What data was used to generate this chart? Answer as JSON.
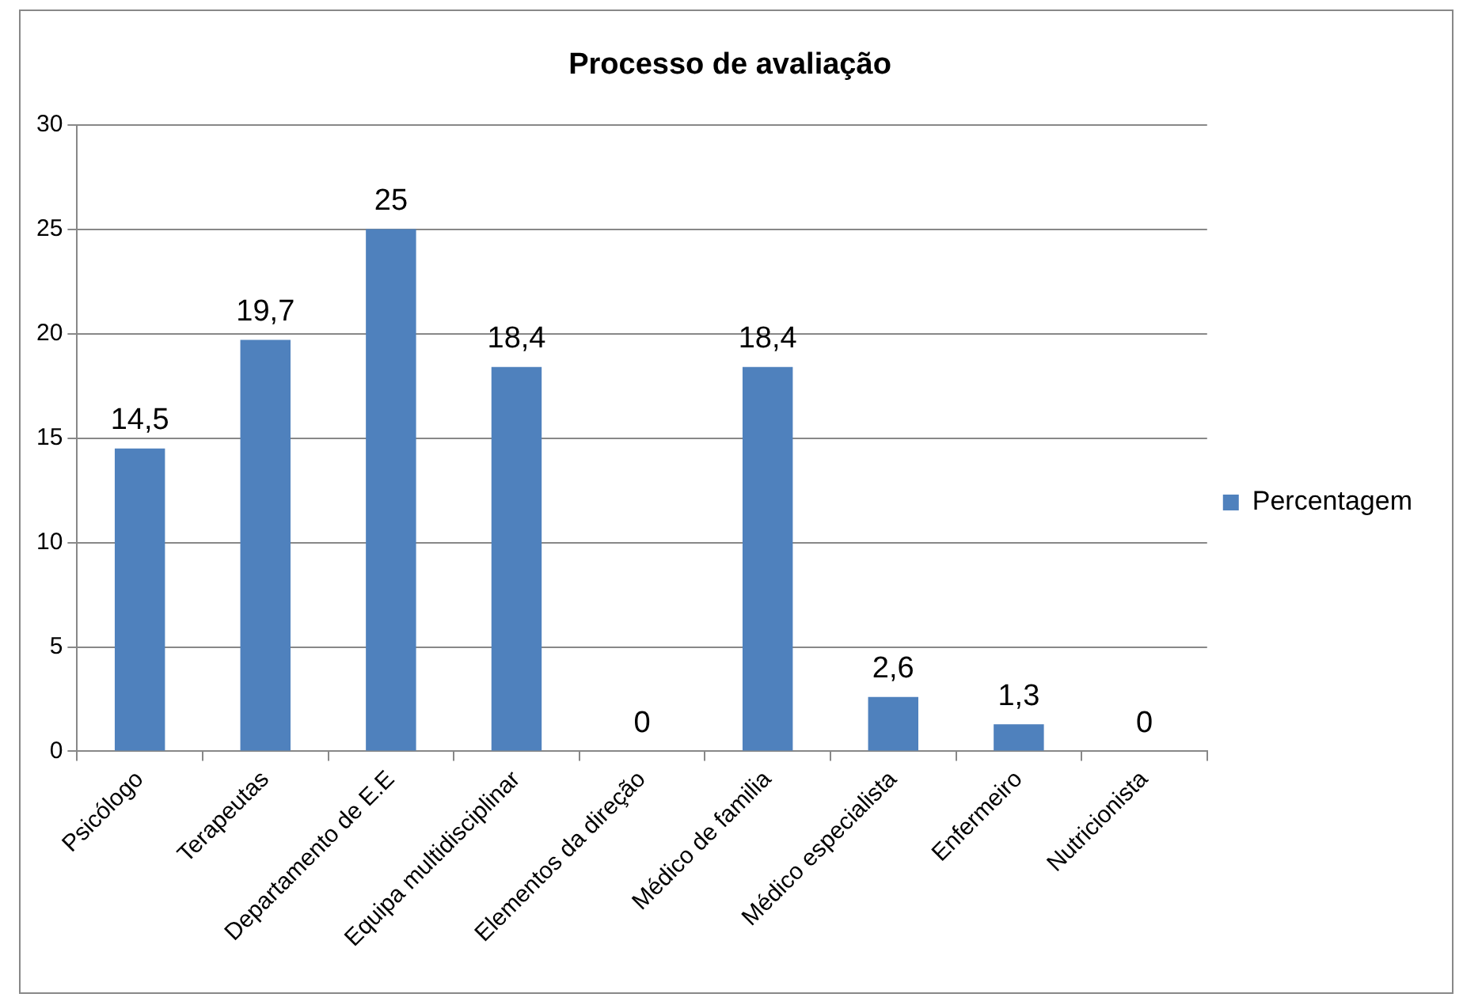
{
  "chart_data": {
    "type": "bar",
    "title": "Processo de avaliação",
    "categories": [
      "Psicólogo",
      "Terapeutas",
      "Departamento de E.E",
      "Equipa multidisciplinar",
      "Elementos da direção",
      "Médico de familia",
      "Médico especialista",
      "Enfermeiro",
      "Nutricionista"
    ],
    "series": [
      {
        "name": "Percentagem",
        "color": "#4f81bd",
        "values": [
          14.5,
          19.7,
          25,
          18.4,
          0,
          18.4,
          2.6,
          1.3,
          0
        ],
        "value_labels": [
          "14,5",
          "19,7",
          "25",
          "18,4",
          "0",
          "18,4",
          "2,6",
          "1,3",
          "0"
        ]
      }
    ],
    "ylim": [
      0,
      30
    ],
    "yticks": [
      0,
      5,
      10,
      15,
      20,
      25,
      30
    ],
    "grid": "y",
    "legend": "right"
  }
}
